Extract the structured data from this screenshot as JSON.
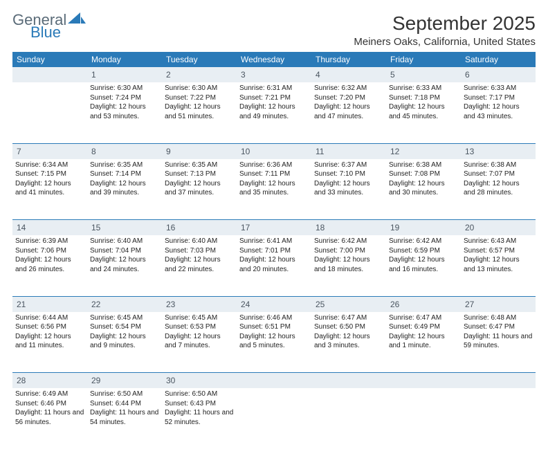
{
  "brand": {
    "general": "General",
    "blue": "Blue"
  },
  "title": "September 2025",
  "location": "Meiners Oaks, California, United States",
  "colors": {
    "header_bg": "#2a7ab8",
    "header_text": "#ffffff",
    "daynum_bg": "#e8eef3",
    "daynum_text": "#4a5560",
    "border": "#2a7ab8",
    "body_text": "#222222",
    "logo_gray": "#5a6b78",
    "logo_blue": "#2a7ab8"
  },
  "weekdays": [
    "Sunday",
    "Monday",
    "Tuesday",
    "Wednesday",
    "Thursday",
    "Friday",
    "Saturday"
  ],
  "weeks": [
    [
      {
        "n": "",
        "sr": "",
        "ss": "",
        "dl": ""
      },
      {
        "n": "1",
        "sr": "6:30 AM",
        "ss": "7:24 PM",
        "dl": "12 hours and 53 minutes."
      },
      {
        "n": "2",
        "sr": "6:30 AM",
        "ss": "7:22 PM",
        "dl": "12 hours and 51 minutes."
      },
      {
        "n": "3",
        "sr": "6:31 AM",
        "ss": "7:21 PM",
        "dl": "12 hours and 49 minutes."
      },
      {
        "n": "4",
        "sr": "6:32 AM",
        "ss": "7:20 PM",
        "dl": "12 hours and 47 minutes."
      },
      {
        "n": "5",
        "sr": "6:33 AM",
        "ss": "7:18 PM",
        "dl": "12 hours and 45 minutes."
      },
      {
        "n": "6",
        "sr": "6:33 AM",
        "ss": "7:17 PM",
        "dl": "12 hours and 43 minutes."
      }
    ],
    [
      {
        "n": "7",
        "sr": "6:34 AM",
        "ss": "7:15 PM",
        "dl": "12 hours and 41 minutes."
      },
      {
        "n": "8",
        "sr": "6:35 AM",
        "ss": "7:14 PM",
        "dl": "12 hours and 39 minutes."
      },
      {
        "n": "9",
        "sr": "6:35 AM",
        "ss": "7:13 PM",
        "dl": "12 hours and 37 minutes."
      },
      {
        "n": "10",
        "sr": "6:36 AM",
        "ss": "7:11 PM",
        "dl": "12 hours and 35 minutes."
      },
      {
        "n": "11",
        "sr": "6:37 AM",
        "ss": "7:10 PM",
        "dl": "12 hours and 33 minutes."
      },
      {
        "n": "12",
        "sr": "6:38 AM",
        "ss": "7:08 PM",
        "dl": "12 hours and 30 minutes."
      },
      {
        "n": "13",
        "sr": "6:38 AM",
        "ss": "7:07 PM",
        "dl": "12 hours and 28 minutes."
      }
    ],
    [
      {
        "n": "14",
        "sr": "6:39 AM",
        "ss": "7:06 PM",
        "dl": "12 hours and 26 minutes."
      },
      {
        "n": "15",
        "sr": "6:40 AM",
        "ss": "7:04 PM",
        "dl": "12 hours and 24 minutes."
      },
      {
        "n": "16",
        "sr": "6:40 AM",
        "ss": "7:03 PM",
        "dl": "12 hours and 22 minutes."
      },
      {
        "n": "17",
        "sr": "6:41 AM",
        "ss": "7:01 PM",
        "dl": "12 hours and 20 minutes."
      },
      {
        "n": "18",
        "sr": "6:42 AM",
        "ss": "7:00 PM",
        "dl": "12 hours and 18 minutes."
      },
      {
        "n": "19",
        "sr": "6:42 AM",
        "ss": "6:59 PM",
        "dl": "12 hours and 16 minutes."
      },
      {
        "n": "20",
        "sr": "6:43 AM",
        "ss": "6:57 PM",
        "dl": "12 hours and 13 minutes."
      }
    ],
    [
      {
        "n": "21",
        "sr": "6:44 AM",
        "ss": "6:56 PM",
        "dl": "12 hours and 11 minutes."
      },
      {
        "n": "22",
        "sr": "6:45 AM",
        "ss": "6:54 PM",
        "dl": "12 hours and 9 minutes."
      },
      {
        "n": "23",
        "sr": "6:45 AM",
        "ss": "6:53 PM",
        "dl": "12 hours and 7 minutes."
      },
      {
        "n": "24",
        "sr": "6:46 AM",
        "ss": "6:51 PM",
        "dl": "12 hours and 5 minutes."
      },
      {
        "n": "25",
        "sr": "6:47 AM",
        "ss": "6:50 PM",
        "dl": "12 hours and 3 minutes."
      },
      {
        "n": "26",
        "sr": "6:47 AM",
        "ss": "6:49 PM",
        "dl": "12 hours and 1 minute."
      },
      {
        "n": "27",
        "sr": "6:48 AM",
        "ss": "6:47 PM",
        "dl": "11 hours and 59 minutes."
      }
    ],
    [
      {
        "n": "28",
        "sr": "6:49 AM",
        "ss": "6:46 PM",
        "dl": "11 hours and 56 minutes."
      },
      {
        "n": "29",
        "sr": "6:50 AM",
        "ss": "6:44 PM",
        "dl": "11 hours and 54 minutes."
      },
      {
        "n": "30",
        "sr": "6:50 AM",
        "ss": "6:43 PM",
        "dl": "11 hours and 52 minutes."
      },
      {
        "n": "",
        "sr": "",
        "ss": "",
        "dl": ""
      },
      {
        "n": "",
        "sr": "",
        "ss": "",
        "dl": ""
      },
      {
        "n": "",
        "sr": "",
        "ss": "",
        "dl": ""
      },
      {
        "n": "",
        "sr": "",
        "ss": "",
        "dl": ""
      }
    ]
  ],
  "labels": {
    "sunrise": "Sunrise:",
    "sunset": "Sunset:",
    "daylight": "Daylight:"
  }
}
